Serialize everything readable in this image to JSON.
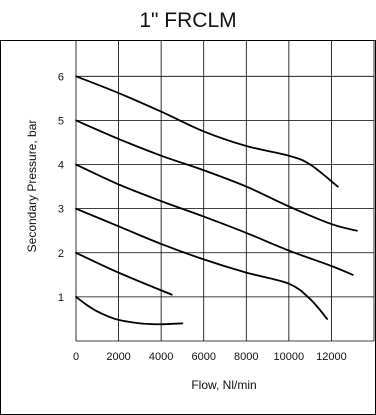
{
  "chart_data": {
    "type": "line",
    "title": "1\" FRCLM",
    "xlabel": "Flow, Nl/min",
    "ylabel": "Secondary Pressure, bar",
    "xlim": [
      0,
      14000
    ],
    "ylim": [
      0,
      6.8
    ],
    "x_ticks": [
      0,
      2000,
      4000,
      6000,
      8000,
      10000,
      12000
    ],
    "x_tick_labels": [
      "0",
      "2000",
      "4000",
      "6000",
      "8000",
      "10000",
      "12000"
    ],
    "y_ticks": [
      1,
      2,
      3,
      4,
      5,
      6
    ],
    "y_tick_labels": [
      "1",
      "2",
      "3",
      "4",
      "5",
      "6"
    ],
    "grid": true,
    "legend": "none",
    "series": [
      {
        "x": [
          0,
          2000,
          4000,
          6000,
          8000,
          10000,
          11000,
          12300
        ],
        "y": [
          6.0,
          5.62,
          5.2,
          4.75,
          4.42,
          4.2,
          4.0,
          3.5
        ]
      },
      {
        "x": [
          0,
          2000,
          4000,
          6000,
          8000,
          10000,
          12000,
          13200
        ],
        "y": [
          5.0,
          4.58,
          4.2,
          3.87,
          3.5,
          3.05,
          2.65,
          2.5
        ]
      },
      {
        "x": [
          0,
          2000,
          4000,
          6000,
          8000,
          10000,
          12000,
          13000
        ],
        "y": [
          4.0,
          3.55,
          3.17,
          2.82,
          2.45,
          2.05,
          1.7,
          1.5
        ]
      },
      {
        "x": [
          0,
          2000,
          4000,
          6000,
          8000,
          10000,
          11000,
          11800
        ],
        "y": [
          3.0,
          2.6,
          2.2,
          1.85,
          1.55,
          1.3,
          0.95,
          0.5
        ]
      },
      {
        "x": [
          0,
          2000,
          4500
        ],
        "y": [
          2.0,
          1.55,
          1.05
        ]
      },
      {
        "x": [
          0,
          500,
          1000,
          1500,
          2000,
          3000,
          4000,
          5000
        ],
        "y": [
          1.0,
          0.82,
          0.67,
          0.56,
          0.48,
          0.4,
          0.38,
          0.4
        ]
      }
    ]
  }
}
